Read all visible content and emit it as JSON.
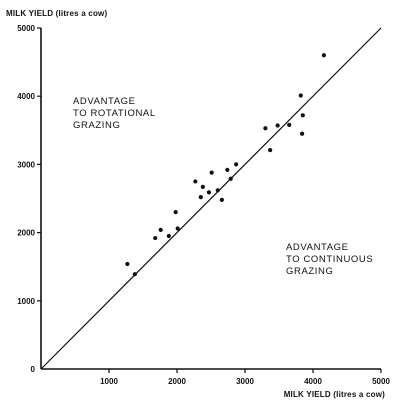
{
  "chart_data": {
    "type": "scatter",
    "ylabel": "MILK YIELD (litres a cow)",
    "xlabel": "MILK YIELD (litres a cow)",
    "xlim": [
      0,
      5000
    ],
    "ylim": [
      0,
      5000
    ],
    "x_ticks": [
      1000,
      2000,
      3000,
      4000,
      5000
    ],
    "y_ticks": [
      1000,
      2000,
      3000,
      4000,
      5000
    ],
    "x_tick_labels": [
      "1000",
      "2000",
      "3000",
      "4000",
      "5000"
    ],
    "y_tick_labels": [
      "1000",
      "2000",
      "3000",
      "4000",
      "5000"
    ],
    "origin_label": "0",
    "grid": false,
    "reference_line": {
      "from": [
        0,
        0
      ],
      "to": [
        5000,
        5000
      ]
    },
    "annotations": {
      "upper": [
        "ADVANTAGE",
        "TO ROTATIONAL",
        "GRAZING"
      ],
      "lower": [
        "ADVANTAGE",
        "TO CONTINUOUS",
        "GRAZING"
      ]
    },
    "points": [
      {
        "x": 1270,
        "y": 1540
      },
      {
        "x": 1380,
        "y": 1390
      },
      {
        "x": 1680,
        "y": 1920
      },
      {
        "x": 1760,
        "y": 2040
      },
      {
        "x": 1880,
        "y": 1950
      },
      {
        "x": 1980,
        "y": 2300
      },
      {
        "x": 2010,
        "y": 2060
      },
      {
        "x": 2270,
        "y": 2750
      },
      {
        "x": 2350,
        "y": 2520
      },
      {
        "x": 2380,
        "y": 2670
      },
      {
        "x": 2470,
        "y": 2590
      },
      {
        "x": 2510,
        "y": 2880
      },
      {
        "x": 2600,
        "y": 2620
      },
      {
        "x": 2660,
        "y": 2480
      },
      {
        "x": 2740,
        "y": 2920
      },
      {
        "x": 2790,
        "y": 2790
      },
      {
        "x": 2870,
        "y": 3000
      },
      {
        "x": 3300,
        "y": 3530
      },
      {
        "x": 3370,
        "y": 3210
      },
      {
        "x": 3480,
        "y": 3570
      },
      {
        "x": 3650,
        "y": 3580
      },
      {
        "x": 3820,
        "y": 4010
      },
      {
        "x": 3840,
        "y": 3450
      },
      {
        "x": 3850,
        "y": 3720
      },
      {
        "x": 4160,
        "y": 4600
      }
    ]
  },
  "colors": {
    "ink": "#111111",
    "background": "#ffffff"
  }
}
